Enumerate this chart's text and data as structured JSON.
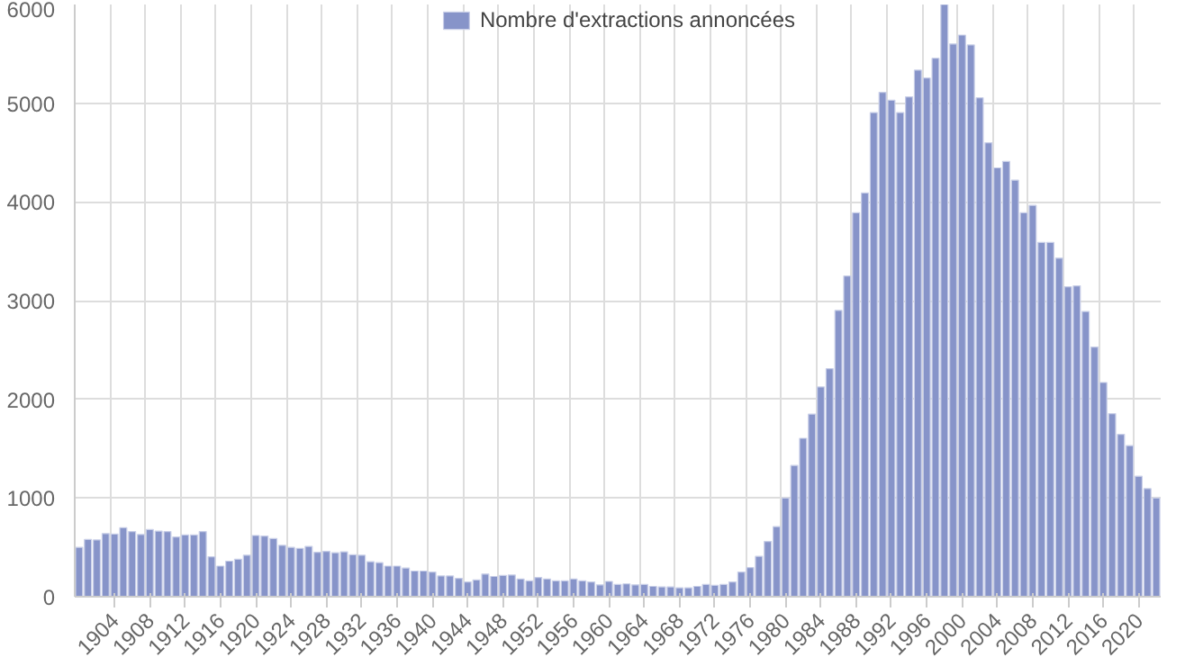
{
  "chart_data": {
    "type": "bar",
    "categories": [
      null,
      null,
      null,
      null,
      "1904",
      null,
      null,
      null,
      "1908",
      null,
      null,
      null,
      "1912",
      null,
      null,
      null,
      "1916",
      null,
      null,
      null,
      "1920",
      null,
      null,
      null,
      "1924",
      null,
      null,
      null,
      "1928",
      null,
      null,
      null,
      "1932",
      null,
      null,
      null,
      "1936",
      null,
      null,
      null,
      "1940",
      null,
      null,
      null,
      "1944",
      null,
      null,
      null,
      "1948",
      null,
      null,
      null,
      "1952",
      null,
      null,
      null,
      "1956",
      null,
      null,
      null,
      "1960",
      null,
      null,
      null,
      "1964",
      null,
      null,
      null,
      "1968",
      null,
      null,
      null,
      "1972",
      null,
      null,
      null,
      "1976",
      null,
      null,
      null,
      "1980",
      null,
      null,
      null,
      "1984",
      null,
      null,
      null,
      "1988",
      null,
      null,
      null,
      "1992",
      null,
      null,
      null,
      "1996",
      null,
      null,
      null,
      "2000",
      null,
      null,
      null,
      "2004",
      null,
      null,
      null,
      "2008",
      null,
      null,
      null,
      "2012",
      null,
      null,
      null,
      "2016",
      null,
      null,
      null,
      "2020",
      null,
      null
    ],
    "series": [
      {
        "name": "Nombre d'extractions annoncées",
        "color": "#8794c9",
        "values": [
          500,
          580,
          575,
          640,
          635,
          700,
          660,
          630,
          680,
          665,
          660,
          605,
          625,
          625,
          660,
          405,
          310,
          360,
          380,
          420,
          620,
          615,
          590,
          520,
          500,
          490,
          510,
          450,
          460,
          445,
          455,
          425,
          420,
          355,
          345,
          310,
          310,
          290,
          260,
          260,
          250,
          210,
          210,
          185,
          150,
          170,
          230,
          205,
          215,
          220,
          180,
          160,
          195,
          180,
          160,
          160,
          180,
          160,
          150,
          120,
          155,
          125,
          130,
          120,
          125,
          105,
          100,
          100,
          90,
          90,
          105,
          125,
          115,
          125,
          150,
          250,
          295,
          410,
          560,
          710,
          1000,
          1330,
          1605,
          1850,
          2125,
          2310,
          2900,
          3250,
          3890,
          4090,
          4905,
          5110,
          5030,
          4905,
          5065,
          5335,
          5255,
          5455,
          6000,
          5600,
          5690,
          5590,
          5055,
          4600,
          4345,
          4410,
          4220,
          3890,
          3965,
          3590,
          3590,
          3430,
          3140,
          3150,
          2890,
          2530,
          2170,
          1855,
          1645,
          1530,
          1220,
          1095,
          1000
        ]
      }
    ],
    "ylim": [
      0,
      6000
    ],
    "yticks": [
      0,
      1000,
      2000,
      3000,
      4000,
      5000,
      6000
    ],
    "grid": true,
    "legend": "top"
  }
}
